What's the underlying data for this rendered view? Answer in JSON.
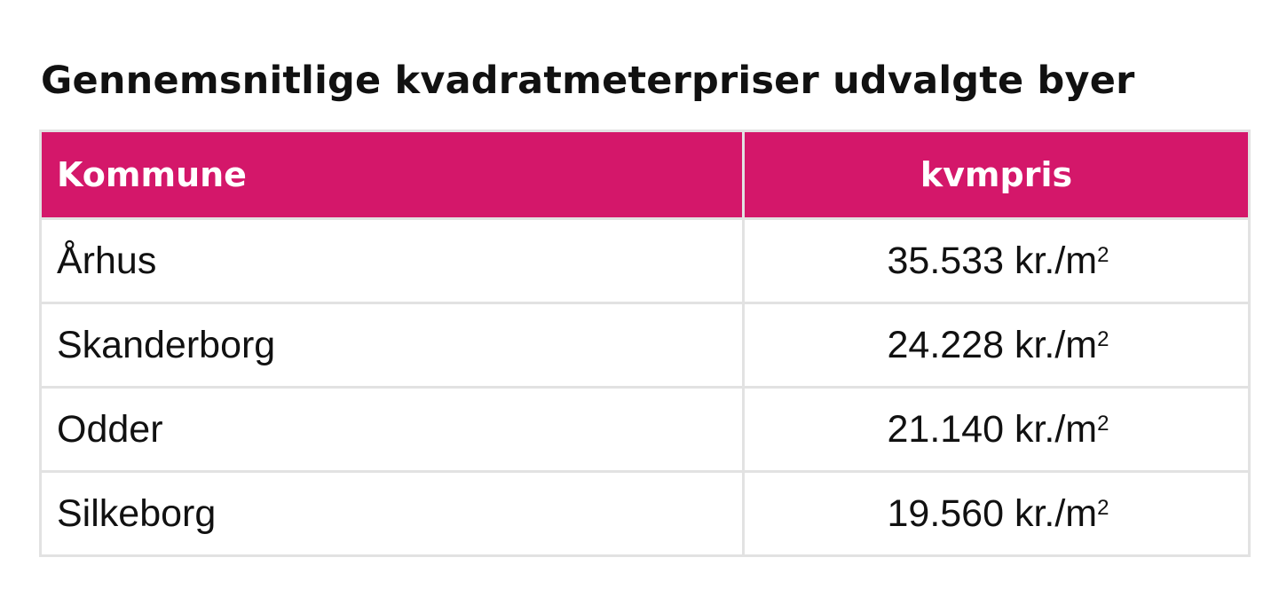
{
  "title": "Gennemsnitlige kvadratmeterpriser udvalgte byer",
  "table": {
    "headers": [
      "Kommune",
      "kvmpris"
    ],
    "rows": [
      {
        "kommune": "Århus",
        "value": "35.533",
        "unit": "kr./m",
        "sup": "2"
      },
      {
        "kommune": "Skanderborg",
        "value": "24.228",
        "unit": "kr./m",
        "sup": "2"
      },
      {
        "kommune": "Odder",
        "value": "21.140",
        "unit": "kr./m",
        "sup": "2"
      },
      {
        "kommune": "Silkeborg",
        "value": "19.560",
        "unit": "kr./m",
        "sup": "2"
      }
    ]
  },
  "colors": {
    "header_bg": "#d4176a",
    "header_text": "#ffffff",
    "border": "#e2e2e2"
  }
}
